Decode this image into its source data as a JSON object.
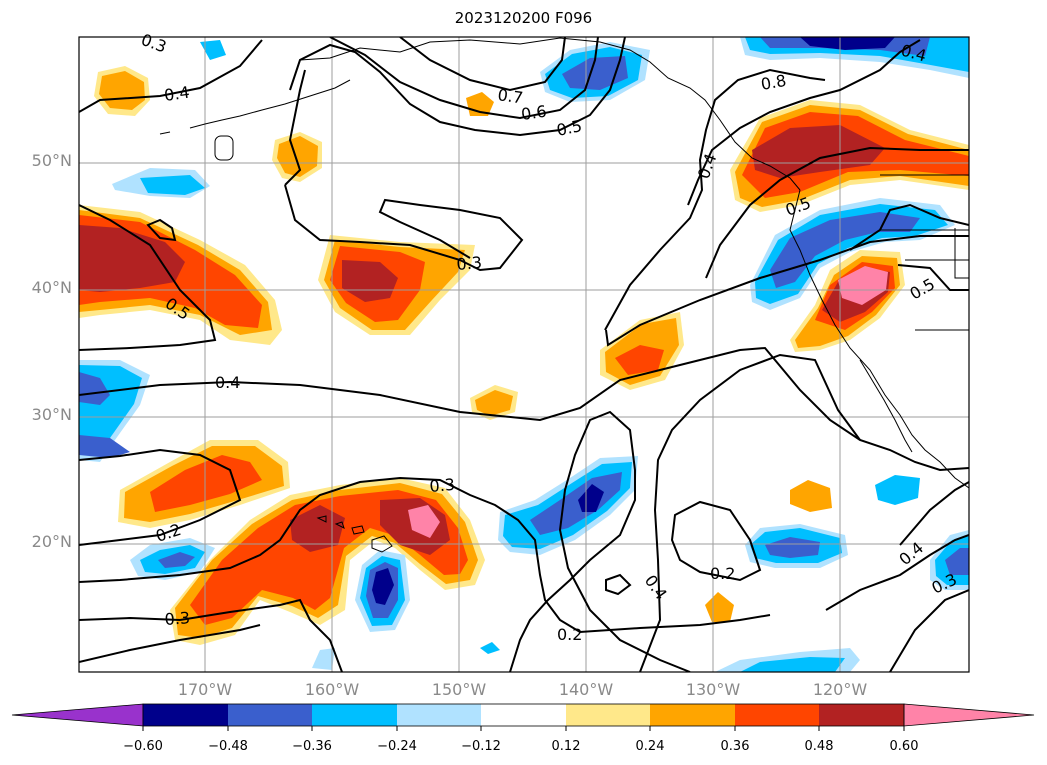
{
  "title": "2023120200 F096",
  "lat_labels": [
    "50°N",
    "40°N",
    "30°N",
    "20°N"
  ],
  "lon_labels": [
    "170°W",
    "160°W",
    "150°W",
    "140°W",
    "130°W",
    "120°W"
  ],
  "colorbar": {
    "ticks": [
      "−0.60",
      "−0.48",
      "−0.36",
      "−0.24",
      "−0.12",
      "0.12",
      "0.24",
      "0.36",
      "0.48",
      "0.60"
    ],
    "colors": [
      "#9932cc",
      "#00008b",
      "#3a5fcd",
      "#00bfff",
      "#b0e2ff",
      "#ffffff",
      "#ffe88a",
      "#ffa500",
      "#ff4500",
      "#b22222",
      "#ff83a8"
    ]
  },
  "contour_labels": [
    "0.3",
    "0.4",
    "0.7",
    "0.6",
    "0.5",
    "0.4",
    "0.8",
    "0.4",
    "0.5",
    "0.3",
    "0.5",
    "0.5",
    "0.4",
    "0.3",
    "0.2",
    "0.3",
    "0.4",
    "0.2",
    "0.2",
    "0.4",
    "0.3"
  ],
  "fill_colors": {
    "yellow": "#ffe88a",
    "orange": "#ffa500",
    "red": "#ff4500",
    "darkred": "#b22222",
    "pink": "#ff83a8",
    "lightblue": "#b0e2ff",
    "cyan": "#00bfff",
    "blue": "#3a5fcd",
    "navy": "#00008b"
  }
}
